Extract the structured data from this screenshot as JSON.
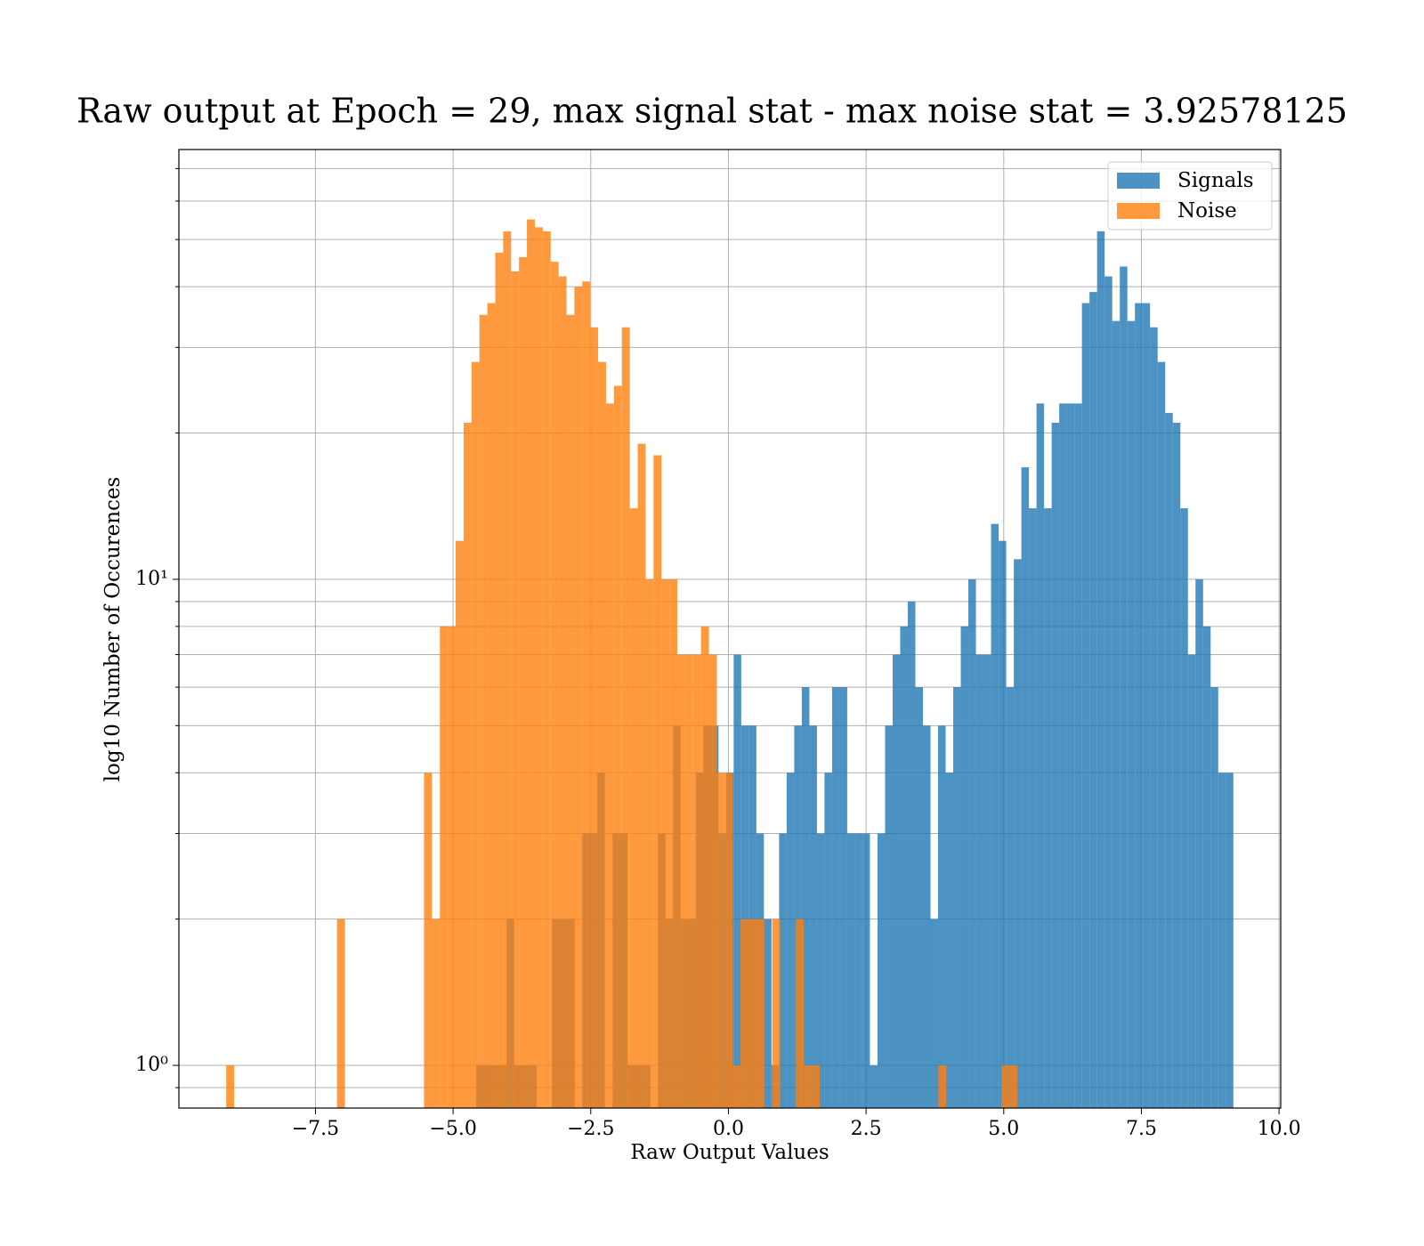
{
  "chart_data": {
    "type": "histogram",
    "title": "Raw output at Epoch = 29, max signal stat - max noise stat = 3.92578125",
    "xlabel": "Raw Output Values",
    "ylabel": "log10 Number of Occurences",
    "xlim": [
      -9.98,
      10.03
    ],
    "ylim": [
      0.817,
      76.6
    ],
    "log_y": true,
    "grid": true,
    "alpha": 0.8,
    "legend": "upper right",
    "xticks": [
      {
        "value": -7.5,
        "label": "−7.5"
      },
      {
        "value": -5,
        "label": "−5.0"
      },
      {
        "value": -2.5,
        "label": "−2.5"
      },
      {
        "value": 0,
        "label": "0.0"
      },
      2.5,
      {
        "value": 5,
        "label": "5.0"
      },
      7.5,
      {
        "value": 10,
        "label": "10.0"
      }
    ],
    "yticks": [
      {
        "value": 1,
        "label": "10⁰"
      },
      {
        "value": 10,
        "label": "10¹"
      }
    ],
    "yminorticks": [
      0.9,
      2,
      3,
      4,
      5,
      6,
      7,
      8,
      9,
      20,
      30,
      40,
      50,
      60,
      70
    ],
    "series": [
      {
        "name": "Signals",
        "color": "#1f77b4",
        "bins": [
          -4.58,
          -4.4425,
          -4.305,
          -4.1675,
          -4.03,
          -3.8925,
          -3.755,
          -3.6175,
          -3.48,
          -3.3425,
          -3.205,
          -3.0675,
          -2.93,
          -2.7925,
          -2.655,
          -2.5175,
          -2.38,
          -2.2425,
          -2.105,
          -1.9675,
          -1.83,
          -1.6925,
          -1.555,
          -1.4175,
          -1.28,
          -1.1425,
          -1.005,
          -0.8675,
          -0.73,
          -0.5925,
          -0.455,
          -0.3175,
          -0.18,
          -0.0425,
          0.095,
          0.2325,
          0.37,
          0.5075,
          0.645,
          0.7825,
          0.92,
          1.0575,
          1.195,
          1.3325,
          1.47,
          1.6075,
          1.745,
          1.8825,
          2.02,
          2.1575,
          2.295,
          2.4325,
          2.57,
          2.7075,
          2.845,
          2.9825,
          3.12,
          3.2575,
          3.395,
          3.5325,
          3.67,
          3.8075,
          3.945,
          4.0825,
          4.22,
          4.3575,
          4.495,
          4.6325,
          4.77,
          4.9075,
          5.045,
          5.1825,
          5.32,
          5.4575,
          5.595,
          5.7325,
          5.87,
          6.0075,
          6.145,
          6.2825,
          6.42,
          6.5575,
          6.695,
          6.8325,
          6.97,
          7.1075,
          7.245,
          7.3825,
          7.52,
          7.6575,
          7.795,
          7.9325,
          8.07,
          8.2075,
          8.345,
          8.4825,
          8.62,
          8.7575,
          8.895,
          9.0325,
          9.17
        ],
        "values": [
          1,
          1,
          1,
          1,
          2,
          1,
          1,
          1,
          0,
          0,
          2,
          2,
          2,
          0,
          3,
          3,
          4,
          0,
          3,
          3,
          1,
          1,
          1,
          0,
          3,
          2,
          5,
          2,
          2,
          4,
          5,
          5,
          3,
          4,
          7,
          5,
          5,
          3,
          2,
          1,
          3,
          4,
          5,
          6,
          5,
          3,
          4,
          6,
          6,
          3,
          3,
          3,
          1,
          3,
          5,
          7,
          8,
          9,
          6,
          5,
          2,
          5,
          4,
          6,
          8,
          10,
          7,
          7,
          13,
          12,
          6,
          11,
          17,
          14,
          23,
          14,
          21,
          23,
          23,
          23,
          37,
          39,
          52,
          42,
          34,
          44,
          34,
          37,
          37,
          33,
          28,
          22,
          21,
          14,
          7,
          10,
          8,
          6,
          4,
          4
        ]
      },
      {
        "name": "Noise",
        "color": "#ff7f0e",
        "bins": [
          -9.12,
          -8.9763,
          -8.8326,
          -8.6889,
          -8.5452,
          -8.4015,
          -8.2578,
          -8.1141,
          -7.9704,
          -7.8267,
          -7.683,
          -7.5393,
          -7.3956,
          -7.2519,
          -7.1082,
          -6.9645,
          -6.8208,
          -6.6771,
          -6.5334,
          -6.3897,
          -6.246,
          -6.1023,
          -5.9586,
          -5.8149,
          -5.6712,
          -5.5275,
          -5.3838,
          -5.2401,
          -5.0964,
          -4.9527,
          -4.809,
          -4.6653,
          -4.5216,
          -4.3779,
          -4.2342,
          -4.0905,
          -3.9468,
          -3.8031,
          -3.6594,
          -3.5157,
          -3.372,
          -3.2283,
          -3.0846,
          -2.9409,
          -2.7972,
          -2.6535,
          -2.5098,
          -2.3661,
          -2.2224,
          -2.0787,
          -1.935,
          -1.7913,
          -1.6476,
          -1.5039,
          -1.3602,
          -1.2165,
          -1.0728,
          -0.9291,
          -0.7854,
          -0.6417,
          -0.498,
          -0.3543,
          -0.2106,
          -0.0669,
          0.0768,
          0.2205,
          0.3642,
          0.5079,
          0.6516,
          0.7953,
          0.939,
          1.0827,
          1.2264,
          1.3701,
          1.5138,
          1.6575,
          1.8012,
          1.9449,
          2.0886,
          2.2323,
          2.376,
          2.5197,
          2.6634,
          2.8071,
          2.9508,
          3.0945,
          3.2382,
          3.3819,
          3.5256,
          3.6693,
          3.813,
          3.9567,
          4.1004,
          4.2441,
          4.3878,
          4.5315,
          4.6752,
          4.8189,
          4.9626,
          5.1063,
          5.25
        ],
        "values": [
          1,
          0,
          0,
          0,
          0,
          0,
          0,
          0,
          0,
          0,
          0,
          0,
          0,
          0,
          2,
          0,
          0,
          0,
          0,
          0,
          0,
          0,
          0,
          0,
          0,
          4,
          2,
          8,
          8,
          12,
          21,
          28,
          35,
          37,
          47,
          52,
          43,
          46,
          55,
          53,
          52,
          45,
          42,
          35,
          40,
          41,
          33,
          28,
          23,
          25,
          33,
          14,
          19,
          10,
          18,
          10,
          10,
          7,
          7,
          7,
          8,
          7,
          4,
          4,
          1,
          2,
          2,
          2,
          0,
          2,
          0,
          0,
          2,
          1,
          1,
          0,
          0,
          0,
          0,
          0,
          0,
          0,
          0,
          0,
          0,
          0,
          0,
          0,
          0,
          0,
          1,
          0,
          0,
          0,
          0,
          0,
          0,
          0,
          1,
          1
        ]
      }
    ]
  }
}
